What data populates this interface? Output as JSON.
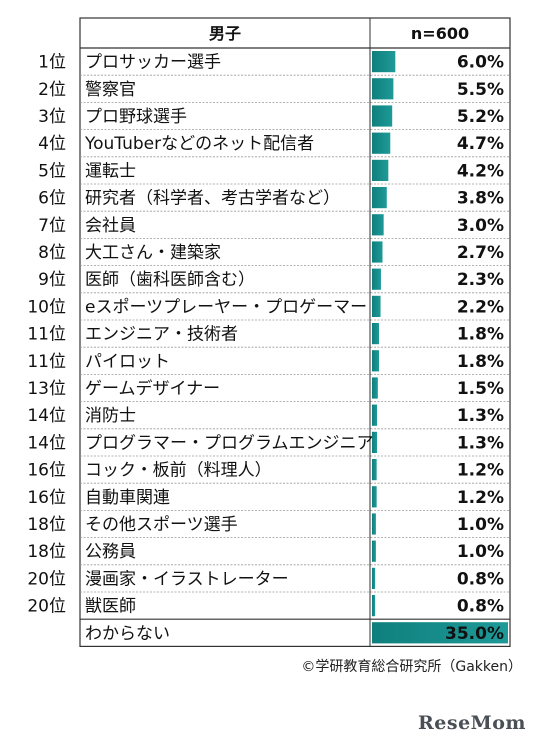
{
  "chart_data": {
    "type": "bar",
    "column_headers": {
      "label": "男子",
      "value": "n=600"
    },
    "unit": "%",
    "bar_color": "#1e9a98",
    "rows": [
      {
        "rank": "1位",
        "label": "プロサッカー選手",
        "value": 6.0,
        "display": "6.0%"
      },
      {
        "rank": "2位",
        "label": "警察官",
        "value": 5.5,
        "display": "5.5%"
      },
      {
        "rank": "3位",
        "label": "プロ野球選手",
        "value": 5.2,
        "display": "5.2%"
      },
      {
        "rank": "4位",
        "label": "YouTuberなどのネット配信者",
        "value": 4.7,
        "display": "4.7%"
      },
      {
        "rank": "5位",
        "label": "運転士",
        "value": 4.2,
        "display": "4.2%"
      },
      {
        "rank": "6位",
        "label": "研究者（科学者、考古学者など）",
        "value": 3.8,
        "display": "3.8%"
      },
      {
        "rank": "7位",
        "label": "会社員",
        "value": 3.0,
        "display": "3.0%"
      },
      {
        "rank": "8位",
        "label": "大工さん・建築家",
        "value": 2.7,
        "display": "2.7%"
      },
      {
        "rank": "9位",
        "label": "医師（歯科医師含む）",
        "value": 2.3,
        "display": "2.3%"
      },
      {
        "rank": "10位",
        "label": "eスポーツプレーヤー・プロゲーマー",
        "value": 2.2,
        "display": "2.2%"
      },
      {
        "rank": "11位",
        "label": "エンジニア・技術者",
        "value": 1.8,
        "display": "1.8%"
      },
      {
        "rank": "11位",
        "label": "パイロット",
        "value": 1.8,
        "display": "1.8%"
      },
      {
        "rank": "13位",
        "label": "ゲームデザイナー",
        "value": 1.5,
        "display": "1.5%"
      },
      {
        "rank": "14位",
        "label": "消防士",
        "value": 1.3,
        "display": "1.3%"
      },
      {
        "rank": "14位",
        "label": "プログラマー・プログラムエンジニア",
        "value": 1.3,
        "display": "1.3%"
      },
      {
        "rank": "16位",
        "label": "コック・板前（料理人）",
        "value": 1.2,
        "display": "1.2%"
      },
      {
        "rank": "16位",
        "label": "自動車関連",
        "value": 1.2,
        "display": "1.2%"
      },
      {
        "rank": "18位",
        "label": "その他スポーツ選手",
        "value": 1.0,
        "display": "1.0%"
      },
      {
        "rank": "18位",
        "label": "公務員",
        "value": 1.0,
        "display": "1.0%"
      },
      {
        "rank": "20位",
        "label": "漫画家・イラストレーター",
        "value": 0.8,
        "display": "0.8%"
      },
      {
        "rank": "20位",
        "label": "獣医師",
        "value": 0.8,
        "display": "0.8%"
      },
      {
        "rank": "",
        "label": "わからない",
        "value": 35.0,
        "display": "35.0%"
      }
    ]
  },
  "footer": {
    "credit": "©学研教育総合研究所（Gakken）",
    "brand": "ReseMom"
  }
}
